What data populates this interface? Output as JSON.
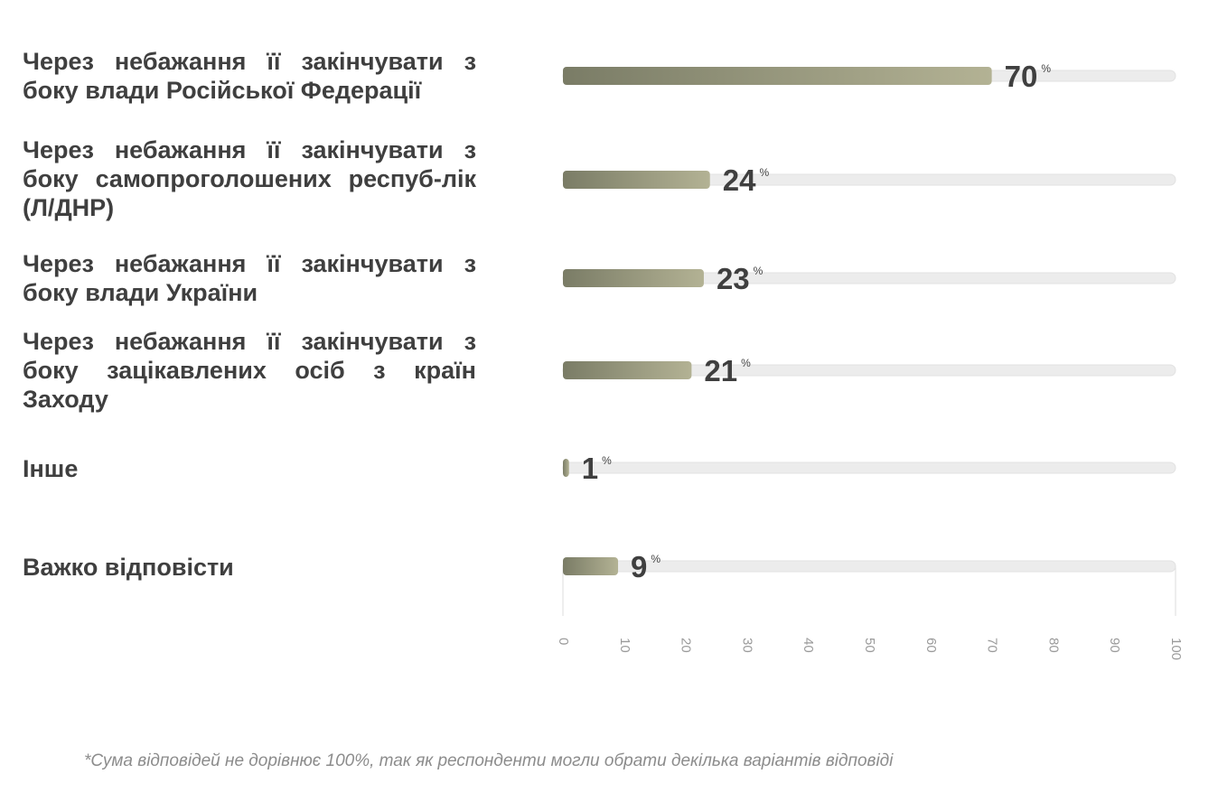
{
  "chart_data": {
    "type": "bar",
    "orientation": "horizontal",
    "categories": [
      "Через небажання її закінчувати з боку влади Російської Федерації",
      "Через небажання її закінчувати з боку самопроголошених респуб-лік (Л/ДНР)",
      "Через небажання її закінчувати з боку влади України",
      "Через небажання її закінчувати з боку зацікавлених осіб з країн Заходу",
      "Інше",
      "Важко відповісти"
    ],
    "values": [
      70,
      24,
      23,
      21,
      1,
      9
    ],
    "value_suffix": "%",
    "xlim": [
      0,
      100
    ],
    "x_ticks": [
      "0",
      "10",
      "20",
      "30",
      "40",
      "50",
      "60",
      "70",
      "80",
      "90",
      "100"
    ],
    "grid": false,
    "colors": {
      "bar_start": "#7a7c66",
      "bar_end": "#b3b294",
      "track": "#ececec",
      "label": "#3f3f3f",
      "tick": "#9a9a9a"
    }
  },
  "footnote": "*Сума відповідей не дорівнює 100%, так як респонденти могли обрати декілька варіантів відповіді"
}
